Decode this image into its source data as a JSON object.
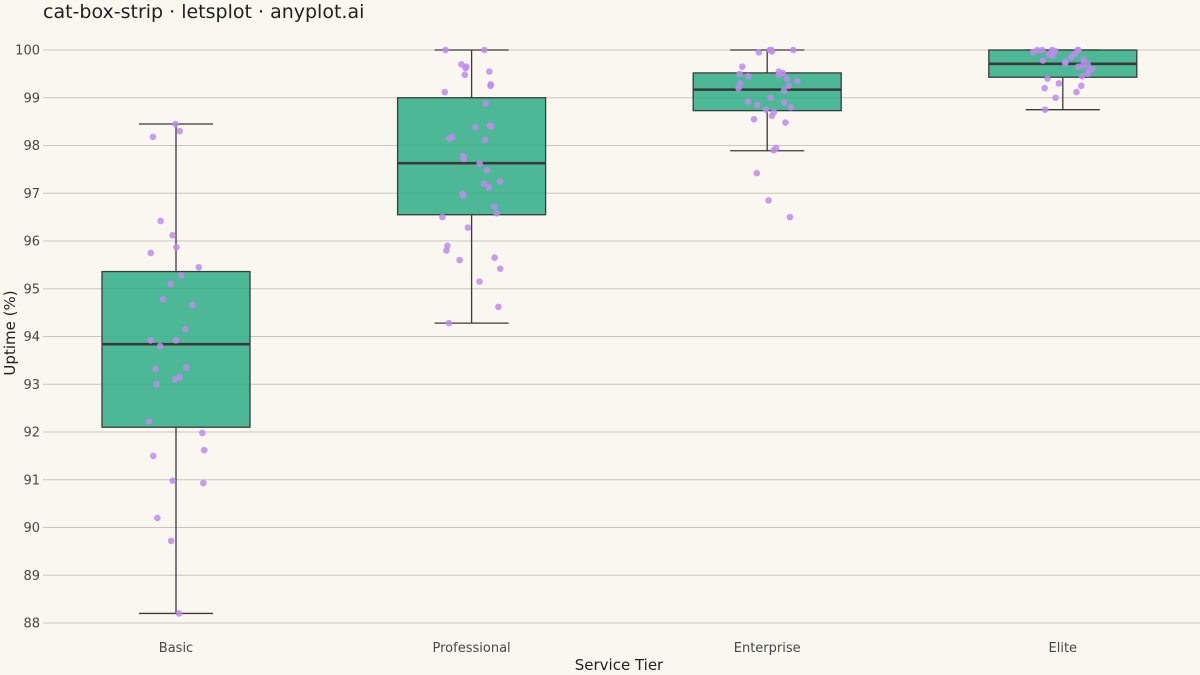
{
  "chart_data": {
    "type": "box",
    "title": "cat-box-strip · letsplot · anyplot.ai",
    "xlabel": "Service Tier",
    "ylabel": "Uptime (%)",
    "ylim": [
      88,
      100
    ],
    "yticks": [
      88,
      89,
      90,
      91,
      92,
      93,
      94,
      95,
      96,
      97,
      98,
      99,
      100
    ],
    "grid": "horizontal",
    "categories": [
      "Basic",
      "Professional",
      "Enterprise",
      "Elite"
    ],
    "colors": {
      "box_fill": "#2EAD86",
      "box_stroke": "#3A3A3A",
      "point": "#C08AEE",
      "grid": "#C9C6BF",
      "background": "#FAF7F1"
    },
    "boxes": [
      {
        "category": "Basic",
        "whisker_low": 88.2,
        "q1": 92.1,
        "median": 93.84,
        "q3": 95.36,
        "whisker_high": 98.45
      },
      {
        "category": "Professional",
        "whisker_low": 94.28,
        "q1": 96.55,
        "median": 97.63,
        "q3": 99.0,
        "whisker_high": 100.0
      },
      {
        "category": "Enterprise",
        "whisker_low": 97.89,
        "q1": 98.73,
        "median": 99.17,
        "q3": 99.52,
        "whisker_high": 100.0
      },
      {
        "category": "Elite",
        "whisker_low": 98.75,
        "q1": 99.43,
        "median": 99.71,
        "q3": 100.0,
        "whisker_high": 100.0
      }
    ],
    "points": [
      {
        "category": "Basic",
        "values": [
          98.45,
          98.3,
          98.18,
          96.42,
          96.12,
          95.87,
          95.75,
          95.45,
          95.28,
          95.1,
          94.78,
          94.66,
          94.15,
          93.92,
          93.92,
          93.8,
          93.35,
          93.32,
          93.15,
          93.1,
          93.0,
          92.22,
          91.98,
          91.62,
          91.5,
          90.98,
          90.93,
          90.2,
          89.72,
          88.2
        ]
      },
      {
        "category": "Professional",
        "values": [
          100.0,
          100.0,
          99.7,
          99.65,
          99.62,
          99.55,
          99.48,
          99.28,
          99.25,
          99.12,
          98.88,
          98.42,
          98.4,
          98.38,
          98.18,
          98.15,
          98.12,
          97.78,
          97.72,
          97.62,
          97.48,
          97.25,
          97.2,
          97.12,
          96.98,
          96.95,
          96.72,
          96.58,
          96.5,
          96.28,
          95.9,
          95.8,
          95.65,
          95.6,
          95.42,
          95.15,
          94.62,
          94.28
        ]
      },
      {
        "category": "Enterprise",
        "values": [
          100.0,
          100.0,
          100.0,
          99.97,
          99.95,
          99.65,
          99.55,
          99.52,
          99.5,
          99.48,
          99.45,
          99.4,
          99.35,
          99.3,
          99.25,
          99.2,
          99.15,
          99.0,
          98.92,
          98.9,
          98.85,
          98.8,
          98.75,
          98.7,
          98.62,
          98.55,
          98.48,
          97.95,
          97.9,
          97.42,
          96.85,
          96.5
        ]
      },
      {
        "category": "Elite",
        "values": [
          100.0,
          100.0,
          100.0,
          100.0,
          100.0,
          99.98,
          99.95,
          99.92,
          99.9,
          99.88,
          99.85,
          99.8,
          99.78,
          99.75,
          99.72,
          99.7,
          99.68,
          99.65,
          99.6,
          99.55,
          99.5,
          99.45,
          99.4,
          99.3,
          99.25,
          99.2,
          99.12,
          99.0,
          98.75
        ]
      }
    ]
  }
}
